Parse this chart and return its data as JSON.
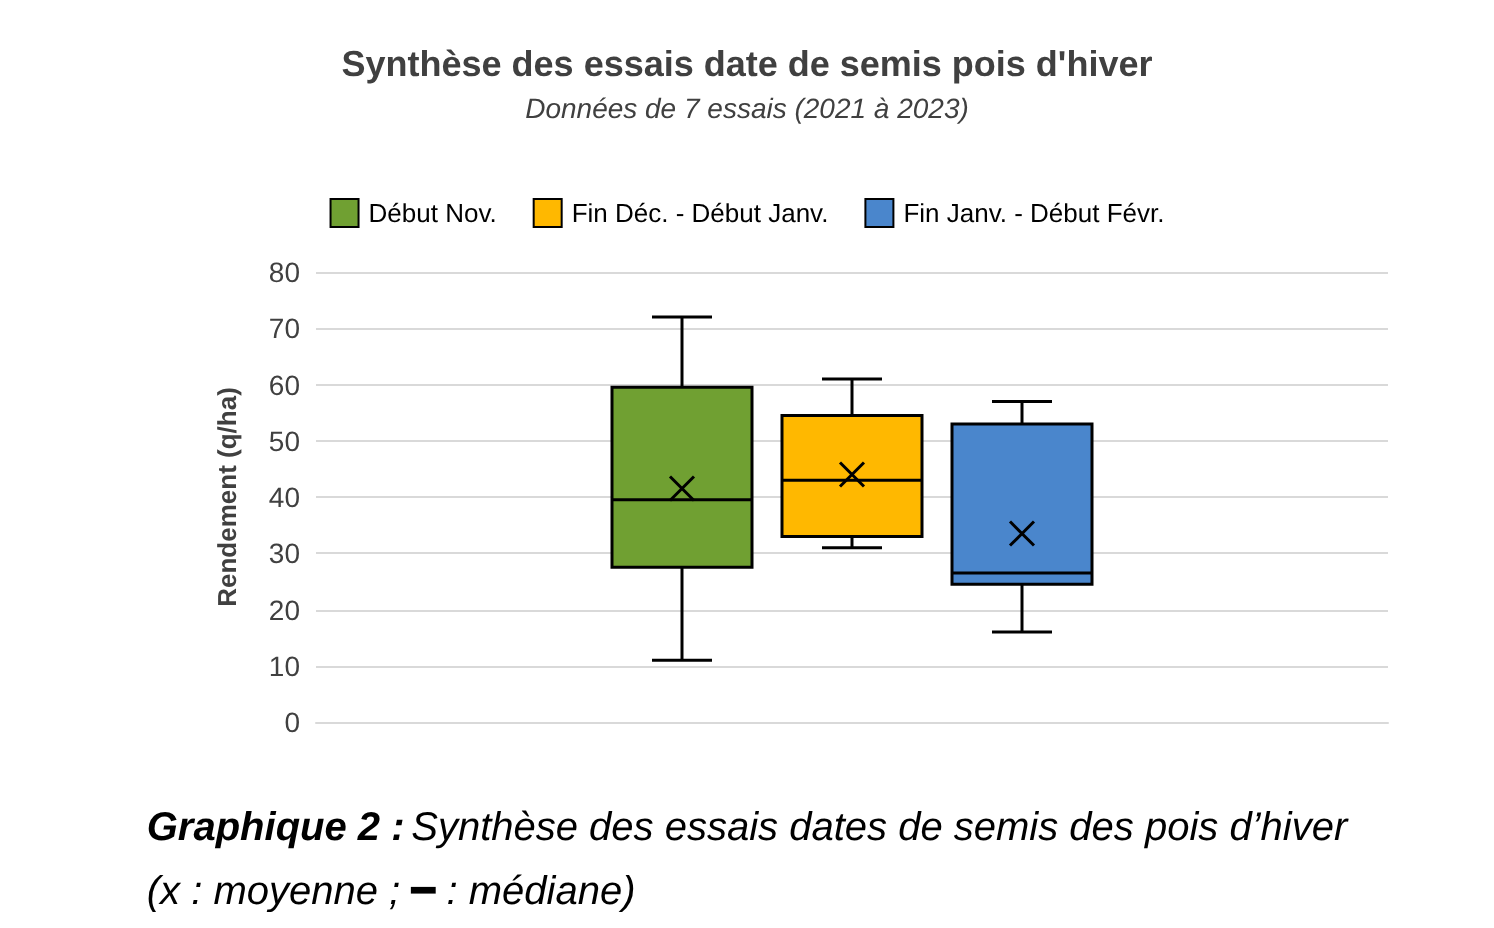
{
  "chart_data": {
    "type": "box",
    "title": "Synthèse des essais date de semis pois d'hiver",
    "subtitle": "Données de 7 essais (2021 à 2023)",
    "ylabel": "Rendement (q/ha)",
    "categories": [
      null
    ],
    "series": [
      {
        "name": "Début Nov.",
        "color": "#70a032",
        "boxes": [
          {
            "low": 11,
            "q1": 27.5,
            "median": 39.5,
            "q3": 59.5,
            "high": 72,
            "mean": 41.5
          }
        ]
      },
      {
        "name": "Fin Déc. - Début Janv.",
        "color": "#ffb800",
        "boxes": [
          {
            "low": 31,
            "q1": 33,
            "median": 43,
            "q3": 54.5,
            "high": 61,
            "mean": 44
          }
        ]
      },
      {
        "name": "Fin Janv. - Début Févr.",
        "color": "#4a86cc",
        "boxes": [
          {
            "low": 16,
            "q1": 24.5,
            "median": 26.5,
            "q3": 53,
            "high": 57,
            "mean": 33.5
          }
        ]
      }
    ],
    "ylim": [
      0,
      80
    ],
    "yticks": [
      0,
      10,
      20,
      30,
      40,
      50,
      60,
      70,
      80
    ],
    "grid": "y",
    "legend": "top",
    "annotations": [
      "Graphique 2 :",
      "Synthèse des essais dates de semis des pois d’hiver",
      "(x : moyenne ; ━ : médiane)"
    ]
  }
}
